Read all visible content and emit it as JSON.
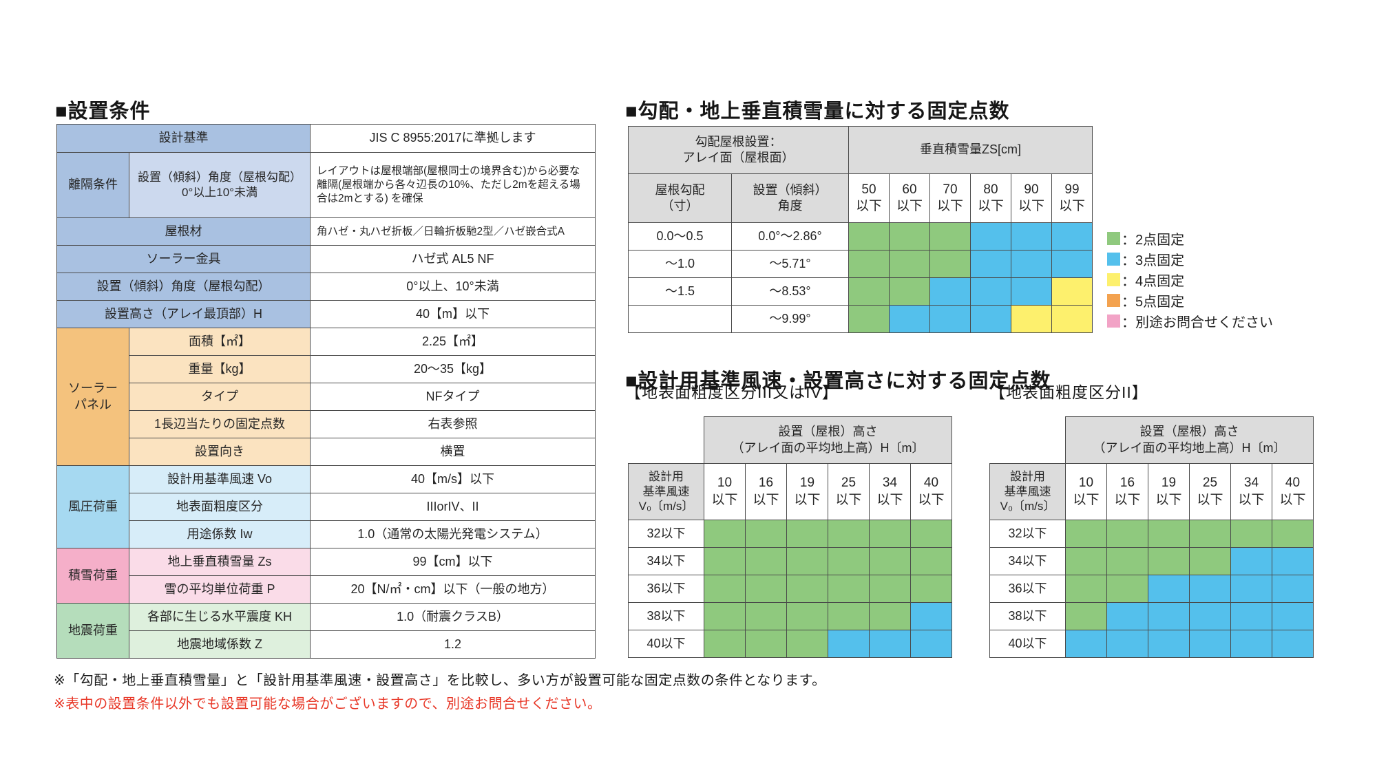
{
  "page": {
    "section1_title": "■設置条件"
  },
  "conditions": {
    "groups": {
      "clearance": "離隔条件",
      "panel": "ソーラー\nパネル",
      "wind": "風圧荷重",
      "snow": "積雪荷重",
      "earthquake": "地震荷重"
    },
    "rows": {
      "design_standard": {
        "label": "設計基準",
        "value": "JIS C 8955:2017に準拠します"
      },
      "clearance": {
        "label": "設置（傾斜）角度（屋根勾配）\n0°以上10°未満",
        "value": "レイアウトは屋根端部(屋根同士の境界含む)から必要な離隔(屋根端から各々辺長の10%、ただし2mを超える場合は2mとする) を確保"
      },
      "roof_material": {
        "label": "屋根材",
        "value": "角ハゼ・丸ハゼ折板／日輪折板馳2型／ハゼ嵌合式A"
      },
      "bracket": {
        "label": "ソーラー金具",
        "value": "ハゼ式 AL5 NF"
      },
      "tilt": {
        "label": "設置（傾斜）角度（屋根勾配）",
        "value": "0°以上、10°未満"
      },
      "height": {
        "label": "設置高さ（アレイ最頂部）H",
        "value": "40【m】以下"
      },
      "area": {
        "label": "面積【㎡】",
        "value": "2.25【㎡】"
      },
      "weight": {
        "label": "重量【kg】",
        "value": "20～35【kg】"
      },
      "type": {
        "label": "タイプ",
        "value": "NFタイプ"
      },
      "fix_points_per_side": {
        "label": "1長辺当たりの固定点数",
        "value": "右表参照"
      },
      "orientation": {
        "label": "設置向き",
        "value": "横置"
      },
      "design_wind_speed": {
        "label": "設計用基準風速 Vo",
        "value": "40【m/s】以下"
      },
      "terrain_roughness": {
        "label": "地表面粗度区分",
        "value": "IIIorIV、II"
      },
      "use_factor": {
        "label": "用途係数 Iw",
        "value": "1.0（通常の太陽光発電システム）"
      },
      "snow_depth": {
        "label": "地上垂直積雪量 Zs",
        "value": "99【cm】以下"
      },
      "snow_unit_load": {
        "label": "雪の平均単位荷重 P",
        "value": "20【N/㎡・cm】以下（一般の地方）"
      },
      "horizontal_seismic": {
        "label": "各部に生じる水平震度 KH",
        "value": "1.0（耐震クラスB）"
      },
      "seismic_zone": {
        "label": "地震地域係数 Z",
        "value": "1.2"
      }
    }
  },
  "snow_table": {
    "title": "■勾配・地上垂直積雪量に対する固定点数",
    "corner_header": "勾配屋根設置：\nアレイ面（屋根面）",
    "span_header": "垂直積雪量ZS[cm]",
    "col1_header": "屋根勾配\n（寸）",
    "col2_header": "設置（傾斜）\n角度",
    "col_headers": [
      "50\n以下",
      "60\n以下",
      "70\n以下",
      "80\n以下",
      "90\n以下",
      "99\n以下"
    ],
    "rows": [
      {
        "slope": "0.0～0.5",
        "angle": "0.0°～2.86°",
        "points": [
          2,
          2,
          2,
          3,
          3,
          3
        ]
      },
      {
        "slope": "～1.0",
        "angle": "～5.71°",
        "points": [
          2,
          2,
          2,
          3,
          3,
          3
        ]
      },
      {
        "slope": "～1.5",
        "angle": "～8.53°",
        "points": [
          2,
          2,
          3,
          3,
          3,
          4
        ]
      },
      {
        "slope": "",
        "diagonal": true,
        "angle": "～9.99°",
        "points": [
          2,
          3,
          3,
          3,
          4,
          4
        ]
      }
    ]
  },
  "legend": {
    "items": [
      {
        "points": "2",
        "label": "：2点固定",
        "color": "#8fc97e"
      },
      {
        "points": "3",
        "label": "：3点固定",
        "color": "#54c0ec"
      },
      {
        "points": "4",
        "label": "：4点固定",
        "color": "#fdf06d"
      },
      {
        "points": "5",
        "label": "：5点固定",
        "color": "#f3a24f"
      },
      {
        "points": "contact",
        "label": "：別途お問合せください",
        "color": "#f2a3c6"
      }
    ]
  },
  "wind_section": {
    "title": "■設計用基準風速・設置高さに対する固定点数",
    "band_header": "設置（屋根）高さ\n（アレイ面の平均地上高）H〔m〕",
    "corner_header": "設計用\n基準風速\nV₀〔m/s〕",
    "col_headers": [
      "10\n以下",
      "16\n以下",
      "19\n以下",
      "25\n以下",
      "34\n以下",
      "40\n以下"
    ],
    "tables": [
      {
        "subtitle": "【地表面粗度区分III又はIV】",
        "rows": [
          {
            "v0": "32以下",
            "points": [
              2,
              2,
              2,
              2,
              2,
              2
            ]
          },
          {
            "v0": "34以下",
            "points": [
              2,
              2,
              2,
              2,
              2,
              2
            ]
          },
          {
            "v0": "36以下",
            "points": [
              2,
              2,
              2,
              2,
              2,
              2
            ]
          },
          {
            "v0": "38以下",
            "points": [
              2,
              2,
              2,
              2,
              2,
              3
            ]
          },
          {
            "v0": "40以下",
            "points": [
              2,
              2,
              2,
              3,
              3,
              3
            ]
          }
        ]
      },
      {
        "subtitle": "【地表面粗度区分II】",
        "rows": [
          {
            "v0": "32以下",
            "points": [
              2,
              2,
              2,
              2,
              2,
              2
            ]
          },
          {
            "v0": "34以下",
            "points": [
              2,
              2,
              2,
              2,
              3,
              3
            ]
          },
          {
            "v0": "36以下",
            "points": [
              2,
              2,
              3,
              3,
              3,
              3
            ]
          },
          {
            "v0": "38以下",
            "points": [
              2,
              3,
              3,
              3,
              3,
              3
            ]
          },
          {
            "v0": "40以下",
            "points": [
              3,
              3,
              3,
              3,
              3,
              3
            ]
          }
        ]
      }
    ]
  },
  "notes": {
    "note1": "※「勾配・地上垂直積雪量」と「設計用基準風速・設置高さ」を比較し、多い方が設置可能な固定点数の条件となります。",
    "note2": "※表中の設置条件以外でも設置可能な場合がございますので、別途お問合せください。"
  },
  "colors": {
    "header_blue": "#a9c1e1",
    "header_blue_light": "#ccd9ee",
    "panel_orange": "#f4c27d",
    "panel_orange_light": "#fbe3c0",
    "wind_blue": "#a6d9f1",
    "wind_blue_light": "#d7edf9",
    "snow_pink": "#f5afc9",
    "snow_pink_light": "#fadce8",
    "quake_green": "#b5ddbb",
    "quake_green_light": "#def0dd",
    "table_header_grey": "#dcdcdc",
    "fix2_green": "#8fc97e",
    "fix3_blue": "#54c0ec",
    "fix4_yellow": "#fdf06d",
    "fix5_orange": "#f3a24f",
    "contact_pink": "#f2a3c6",
    "note_red": "#e83828"
  }
}
